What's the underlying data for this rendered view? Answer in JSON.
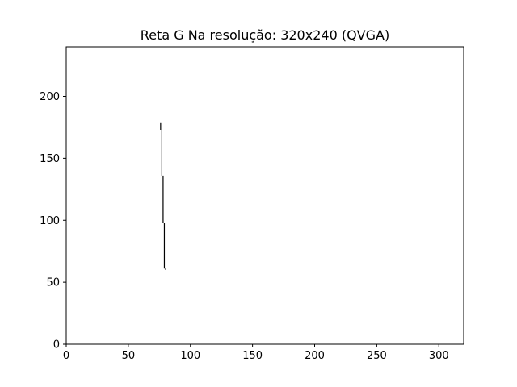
{
  "chart_data": {
    "type": "line",
    "title": "Reta G Na resolução: 320x240 (QVGA)",
    "xlabel": "",
    "ylabel": "",
    "xlim": [
      0,
      320
    ],
    "ylim": [
      0,
      240
    ],
    "x_ticks": [
      0,
      50,
      100,
      150,
      200,
      250,
      300
    ],
    "y_ticks": [
      0,
      50,
      100,
      150,
      200
    ],
    "grid": false,
    "series": [
      {
        "name": "Reta G",
        "color": "#000000",
        "segments": [
          {
            "x": [
              76,
              76
            ],
            "y": [
              179,
              173
            ]
          },
          {
            "x": [
              77,
              77
            ],
            "y": [
              173,
              136
            ]
          },
          {
            "x": [
              78,
              78
            ],
            "y": [
              136,
              98
            ]
          },
          {
            "x": [
              79,
              79
            ],
            "y": [
              98,
              61
            ]
          },
          {
            "x": [
              80,
              80
            ],
            "y": [
              61,
              60
            ]
          }
        ]
      }
    ]
  }
}
